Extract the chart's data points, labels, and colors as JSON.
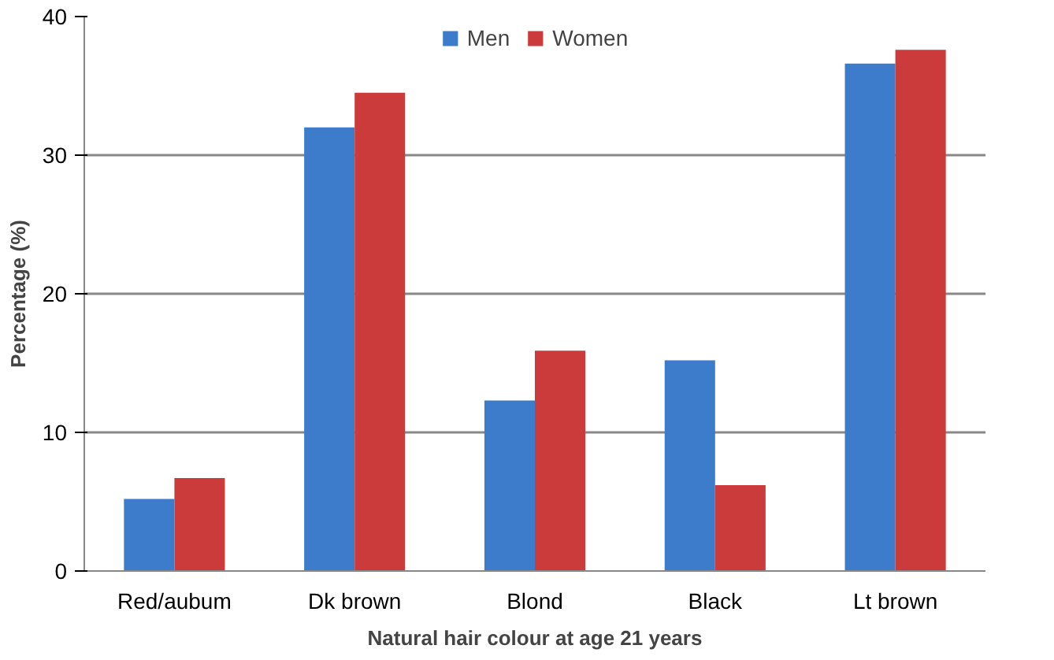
{
  "chart_data": {
    "type": "bar",
    "xlabel": "Natural hair colour at age 21 years",
    "ylabel": "Percentage (%)",
    "categories": [
      "Red/aubum",
      "Dk brown",
      "Blond",
      "Black",
      "Lt brown"
    ],
    "series": [
      {
        "name": "Men",
        "color": "#3d7ccb",
        "values": [
          5.2,
          32.0,
          12.3,
          15.2,
          36.6
        ]
      },
      {
        "name": "Women",
        "color": "#cc3b3b",
        "values": [
          6.7,
          34.5,
          15.9,
          6.2,
          37.6
        ]
      }
    ],
    "ylim": [
      0,
      40
    ],
    "yticks": [
      0,
      10,
      20,
      30,
      40
    ],
    "grid": "y",
    "legend": "top"
  }
}
